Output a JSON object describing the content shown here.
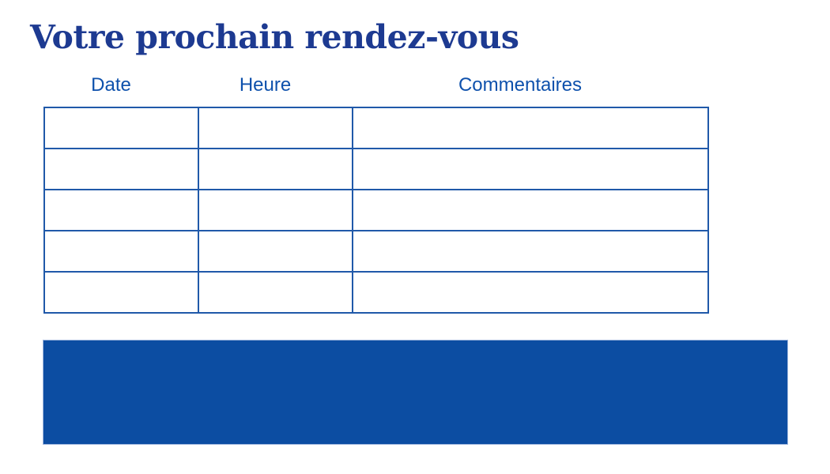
{
  "page": {
    "title": "Votre prochain rendez-vous"
  },
  "table": {
    "headers": [
      "Date",
      "Heure",
      "Commentaires"
    ],
    "rows": [
      [
        "",
        "",
        ""
      ],
      [
        "",
        "",
        ""
      ],
      [
        "",
        "",
        ""
      ],
      [
        "",
        "",
        ""
      ],
      [
        "",
        "",
        ""
      ]
    ]
  },
  "banner": {
    "text": ""
  },
  "colors": {
    "title": "#1d3a91",
    "header_text": "#0e51ac",
    "table_border": "#2059a9",
    "banner_fill": "#0c4da2",
    "banner_edge": "#9fb6dd",
    "background": "#ffffff"
  }
}
